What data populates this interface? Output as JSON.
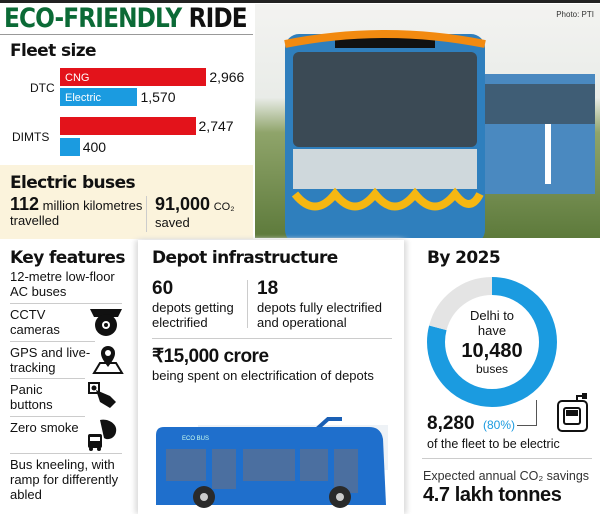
{
  "title": {
    "part1": "ECO-FRIENDLY",
    "part2": "RIDE"
  },
  "photo_credit": "Photo: PTI",
  "fleet": {
    "heading": "Fleet size"
  },
  "chart_data": [
    {
      "type": "bar",
      "orientation": "horizontal",
      "title": "Fleet size",
      "categories": [
        "DTC",
        "DIMTS"
      ],
      "series": [
        {
          "name": "CNG",
          "values": [
            2966,
            2747
          ],
          "color": "#e3131b"
        },
        {
          "name": "Electric",
          "values": [
            1570,
            400
          ],
          "color": "#1b9be0"
        }
      ],
      "value_labels": [
        [
          "2,966",
          "2,747"
        ],
        [
          "1,570",
          "400"
        ]
      ]
    },
    {
      "type": "pie",
      "style": "donut",
      "title": "By 2025",
      "values": [
        {
          "label": "electric",
          "value": 8280,
          "percent": 80,
          "color": "#1b9be0"
        },
        {
          "label": "other",
          "value": 2200,
          "color": "#e4e4e4"
        }
      ]
    }
  ],
  "electric_buses": {
    "heading": "Electric buses",
    "km_value": "112",
    "km_text": "million kilometres",
    "km_text2": "travelled",
    "co2_value": "91,000",
    "co2_unit": "CO₂",
    "co2_text": "saved"
  },
  "key_features": {
    "heading": "Key features",
    "items": [
      {
        "label": "12-metre low-floor AC buses"
      },
      {
        "label": "CCTV cameras",
        "icon": "cctv-camera-icon"
      },
      {
        "label": "GPS and live-tracking",
        "icon": "map-pin-icon"
      },
      {
        "label": "Panic buttons",
        "icon": "hand-button-icon"
      },
      {
        "label": "Zero smoke",
        "icon": "bus-smoke-icon"
      },
      {
        "label": "Bus kneeling, with ramp for differently abled"
      }
    ]
  },
  "depot": {
    "heading": "Depot infrastructure",
    "n1": "60",
    "t1": "depots getting electrified",
    "n2": "18",
    "t2": "depots fully electrified and operational",
    "amount": "₹15,000 crore",
    "amount_text": "being spent on electrification of depots",
    "bus_label": "ECO BUS"
  },
  "by2025": {
    "heading": "By 2025",
    "center1": "Delhi to have",
    "center_num": "10,480",
    "center2": "buses",
    "electric_num": "8,280",
    "electric_pct": "(80%)",
    "electric_text": "of the fleet to be electric",
    "savings_label": "Expected annual CO₂ savings",
    "savings_value": "4.7 lakh tonnes"
  }
}
